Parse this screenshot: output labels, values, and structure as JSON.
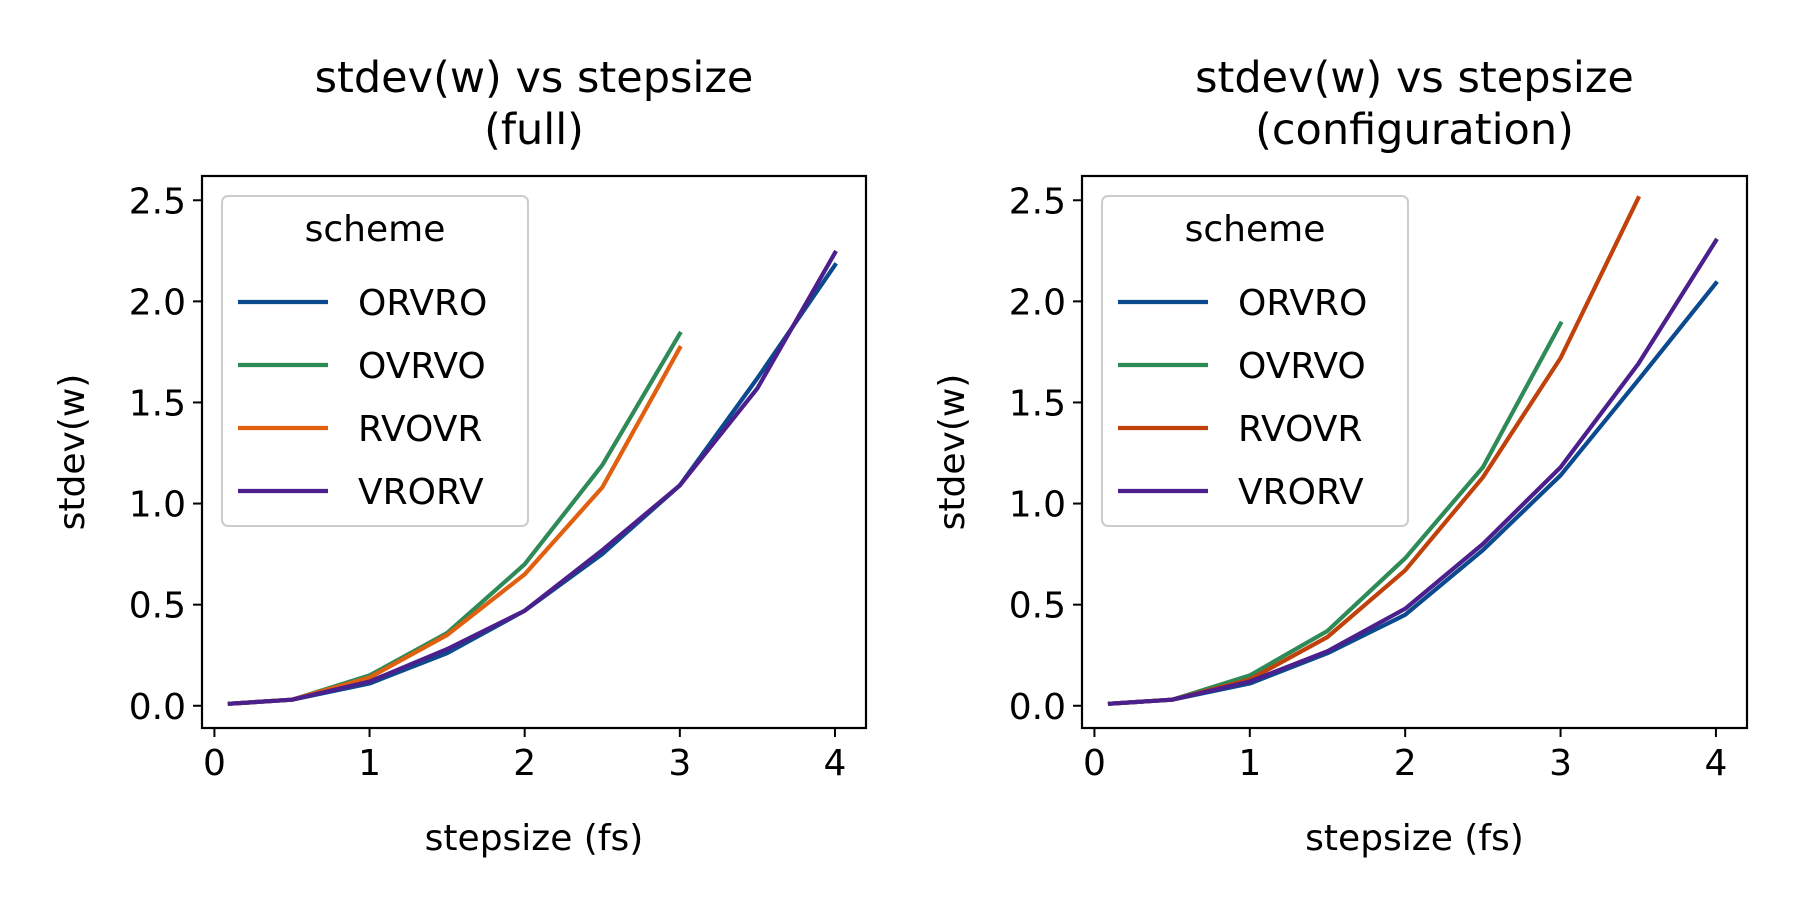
{
  "chart_data": [
    {
      "type": "line",
      "title": "stdev(w) vs stepsize\n(full)",
      "xlabel": "stepsize (fs)",
      "ylabel": "stdev(w)",
      "xlim": [
        -0.08,
        4.2
      ],
      "ylim": [
        -0.11,
        2.62
      ],
      "xticks": [
        0,
        1,
        2,
        3,
        4
      ],
      "xtick_labels": [
        "0",
        "1",
        "2",
        "3",
        "4"
      ],
      "yticks": [
        0.0,
        0.5,
        1.0,
        1.5,
        2.0,
        2.5
      ],
      "ytick_labels": [
        "0.0",
        "0.5",
        "1.0",
        "1.5",
        "2.0",
        "2.5"
      ],
      "grid": false,
      "legend": {
        "title": "scheme",
        "position": "top-left"
      },
      "series": [
        {
          "name": "ORVRO",
          "color": "#0b4a8e",
          "x": [
            0.1,
            0.5,
            1.0,
            1.5,
            2.0,
            2.5,
            3.0,
            3.5,
            4.0
          ],
          "y": [
            0.01,
            0.03,
            0.11,
            0.26,
            0.47,
            0.75,
            1.09,
            1.62,
            2.18
          ]
        },
        {
          "name": "OVRVO",
          "color": "#2e8b57",
          "x": [
            0.1,
            0.5,
            1.0,
            1.5,
            2.0,
            2.5,
            3.0
          ],
          "y": [
            0.01,
            0.03,
            0.15,
            0.36,
            0.7,
            1.19,
            1.84
          ]
        },
        {
          "name": "RVOVR",
          "color": "#e0600f",
          "x": [
            0.1,
            0.5,
            1.0,
            1.5,
            2.0,
            2.5,
            3.0
          ],
          "y": [
            0.01,
            0.03,
            0.14,
            0.35,
            0.65,
            1.08,
            1.77
          ]
        },
        {
          "name": "VRORV",
          "color": "#4b1f8c",
          "x": [
            0.1,
            0.5,
            1.0,
            1.5,
            2.0,
            2.5,
            3.0,
            3.5,
            4.0
          ],
          "y": [
            0.01,
            0.03,
            0.12,
            0.28,
            0.47,
            0.77,
            1.09,
            1.57,
            2.24
          ]
        }
      ]
    },
    {
      "type": "line",
      "title": "stdev(w) vs stepsize\n(configuration)",
      "xlabel": "stepsize (fs)",
      "ylabel": "stdev(w)",
      "xlim": [
        -0.08,
        4.2
      ],
      "ylim": [
        -0.11,
        2.62
      ],
      "xticks": [
        0,
        1,
        2,
        3,
        4
      ],
      "xtick_labels": [
        "0",
        "1",
        "2",
        "3",
        "4"
      ],
      "yticks": [
        0.0,
        0.5,
        1.0,
        1.5,
        2.0,
        2.5
      ],
      "ytick_labels": [
        "0.0",
        "0.5",
        "1.0",
        "1.5",
        "2.0",
        "2.5"
      ],
      "grid": false,
      "legend": {
        "title": "scheme",
        "position": "top-left"
      },
      "series": [
        {
          "name": "ORVRO",
          "color": "#0b4a8e",
          "x": [
            0.1,
            0.5,
            1.0,
            1.5,
            2.0,
            2.5,
            3.0,
            3.5,
            4.0
          ],
          "y": [
            0.01,
            0.03,
            0.11,
            0.26,
            0.45,
            0.77,
            1.14,
            1.61,
            2.09
          ]
        },
        {
          "name": "OVRVO",
          "color": "#2e8b57",
          "x": [
            0.1,
            0.5,
            1.0,
            1.5,
            2.0,
            2.5,
            3.0
          ],
          "y": [
            0.01,
            0.03,
            0.15,
            0.37,
            0.73,
            1.18,
            1.89
          ]
        },
        {
          "name": "RVOVR",
          "color": "#c0420a",
          "x": [
            0.1,
            0.5,
            1.0,
            1.5,
            2.0,
            2.5,
            3.0,
            3.5
          ],
          "y": [
            0.01,
            0.03,
            0.13,
            0.34,
            0.67,
            1.13,
            1.72,
            2.51
          ]
        },
        {
          "name": "VRORV",
          "color": "#4b1f8c",
          "x": [
            0.1,
            0.5,
            1.0,
            1.5,
            2.0,
            2.5,
            3.0,
            3.5,
            4.0
          ],
          "y": [
            0.01,
            0.03,
            0.12,
            0.27,
            0.48,
            0.8,
            1.18,
            1.69,
            2.3
          ]
        }
      ]
    }
  ]
}
